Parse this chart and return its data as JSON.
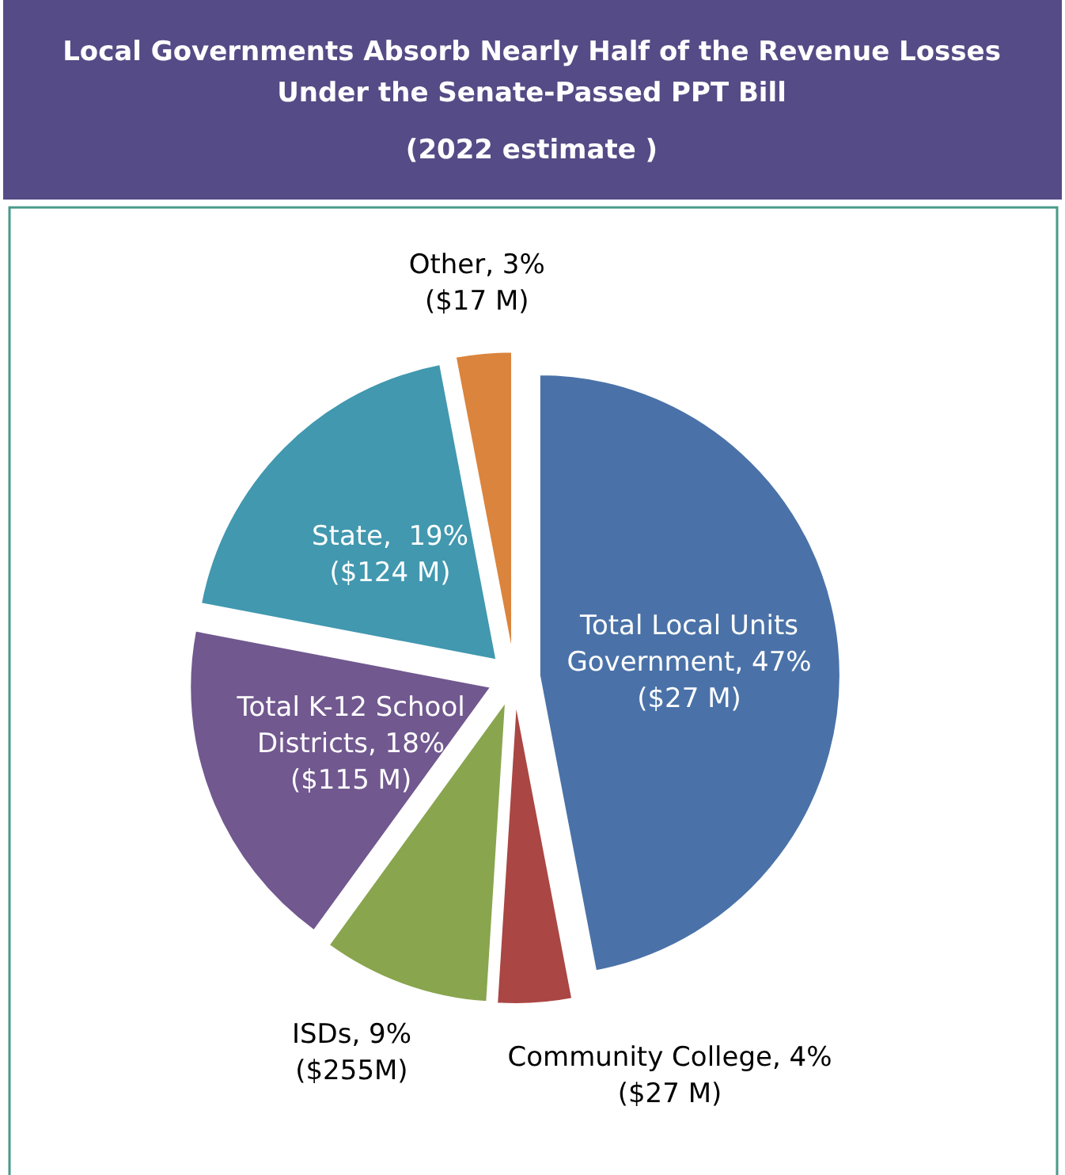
{
  "chart_data": {
    "type": "pie",
    "title": "Local Governments Absorb Nearly Half of the Revenue Losses Under the Senate-Passed PPT Bill",
    "subtitle": "(2022 estimate )",
    "categories": [
      "Total Local Units Government",
      "Community College",
      "ISDs",
      "Total K-12 School Districts",
      "State",
      "Other"
    ],
    "values": [
      47,
      4,
      9,
      18,
      19,
      3
    ],
    "colors": [
      "#4a72a8",
      "#aa4643",
      "#89a54e",
      "#71588f",
      "#4198af",
      "#db843d"
    ],
    "value_labels": [
      "47%\n($27 M)",
      "4%\n($27 M)",
      "9%\n($255M)",
      "18%\n($115 M)",
      " 19%\n($124 M)",
      "3%\n($17 M)"
    ],
    "legend": false
  }
}
